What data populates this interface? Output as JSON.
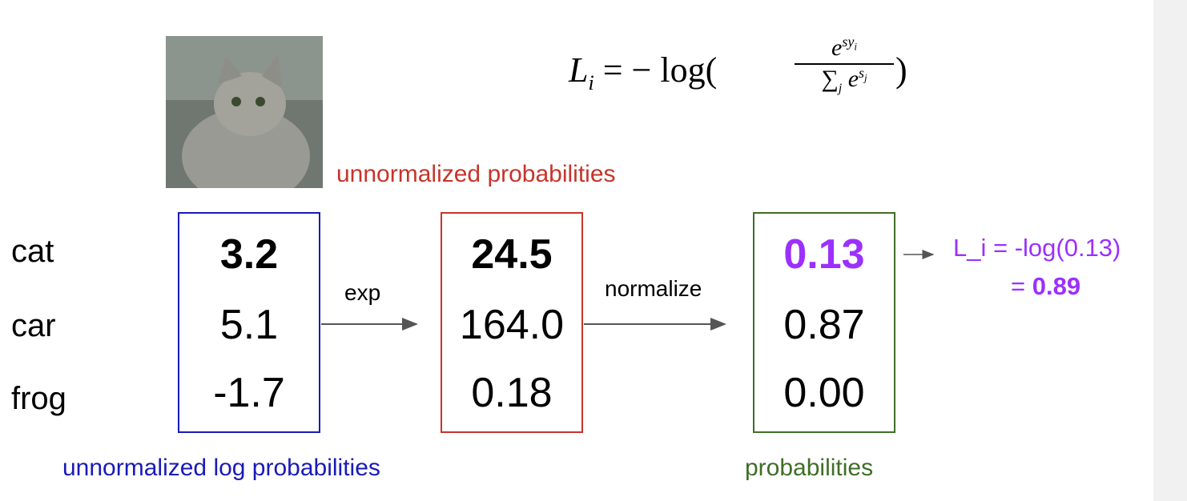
{
  "formula": {
    "lhs": "L",
    "lhs_sub": "i",
    "eq": "= − log(",
    "num_base": "e",
    "num_exp": "sy",
    "num_exp_sub": "i",
    "den_sum": "∑",
    "den_sum_sub": "j",
    "den_base": "e",
    "den_exp": "s",
    "den_exp_sub": "j",
    "close": ")"
  },
  "rows": [
    "cat",
    "car",
    "frog"
  ],
  "boxes": [
    {
      "values": [
        "3.2",
        "5.1",
        "-1.7"
      ],
      "caption": "unnormalized log probabilities"
    },
    {
      "values": [
        "24.5",
        "164.0",
        "0.18"
      ],
      "caption": "unnormalized probabilities"
    },
    {
      "values": [
        "0.13",
        "0.87",
        "0.00"
      ],
      "caption": "probabilities"
    }
  ],
  "arrows": [
    "exp",
    "normalize"
  ],
  "loss": {
    "line1": "L_i = -log(0.13)",
    "line2_prefix": "=",
    "line2_value": "0.89"
  }
}
